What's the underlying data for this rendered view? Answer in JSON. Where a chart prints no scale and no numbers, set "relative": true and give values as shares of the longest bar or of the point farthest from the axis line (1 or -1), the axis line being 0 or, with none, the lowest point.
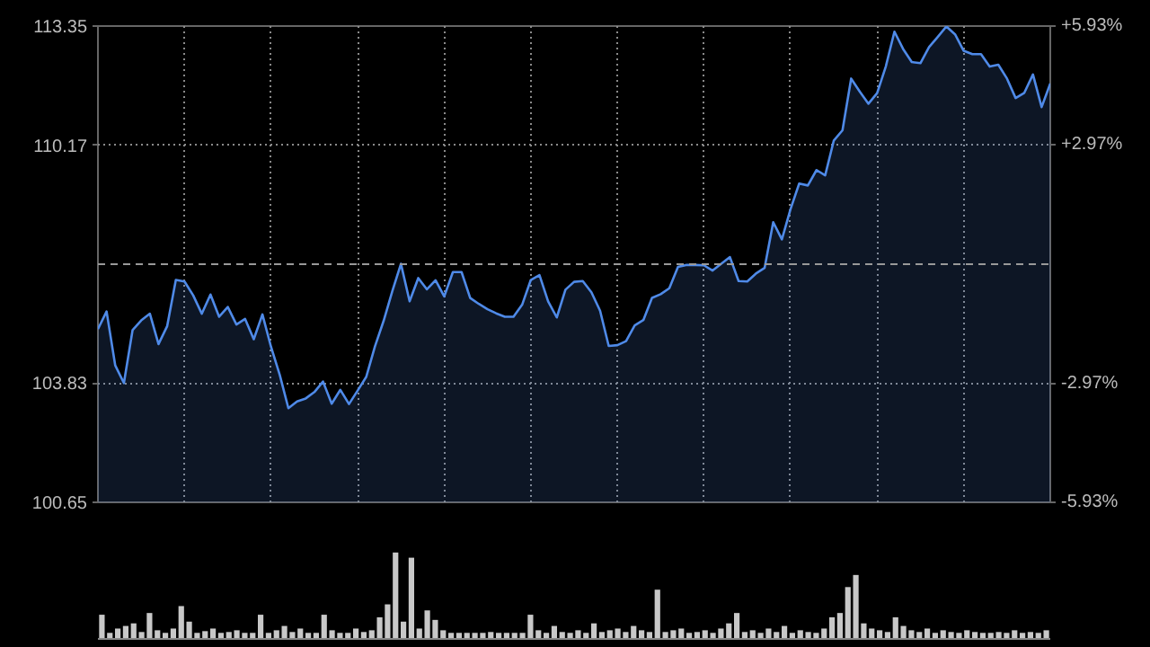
{
  "chart_data": [
    {
      "type": "area",
      "color": "#4f8ae8",
      "grid": true,
      "tick_labels": "y",
      "ylim": [
        100.65,
        113.35
      ],
      "yticks": [
        100.65,
        103.83,
        110.17,
        113.35
      ],
      "y2lim": [
        -5.93,
        5.93
      ],
      "y2ticks": [
        {
          "value": -5.93,
          "label": "-5.93%"
        },
        {
          "value": -2.97,
          "label": "-2.97%"
        },
        {
          "value": 2.97,
          "label": "+2.97%"
        },
        {
          "value": 5.93,
          "label": "+5.93%"
        }
      ],
      "ref_lines": [
        {
          "axis": "y",
          "value": 107.0,
          "line_style": "dashed",
          "color": "#999999"
        }
      ],
      "categories": [
        null,
        null,
        null,
        null,
        null,
        null,
        null,
        null,
        null,
        null,
        null,
        null,
        null,
        null,
        null,
        null,
        null,
        null,
        null,
        null,
        null,
        null,
        null,
        null,
        null,
        null,
        null,
        null,
        null,
        null,
        null,
        null,
        null,
        null,
        null,
        null,
        null,
        null,
        null,
        null,
        null,
        null,
        null,
        null,
        null,
        null,
        null,
        null,
        null,
        null,
        null,
        null,
        null,
        null,
        null,
        null,
        null,
        null,
        null,
        null,
        null,
        null,
        null,
        null,
        null,
        null,
        null,
        null,
        null,
        null,
        null,
        null,
        null,
        null,
        null,
        null,
        null,
        null,
        null,
        null,
        null,
        null,
        null,
        null,
        null,
        null,
        null,
        null,
        null,
        null,
        null,
        null,
        null,
        null,
        null,
        null,
        null,
        null,
        null,
        null,
        null,
        null,
        null,
        null,
        null,
        null,
        null,
        null,
        null,
        null,
        null
      ],
      "values": [
        105.27,
        105.74,
        104.3,
        103.83,
        105.24,
        105.5,
        105.68,
        104.87,
        105.35,
        106.58,
        106.54,
        106.17,
        105.68,
        106.19,
        105.6,
        105.86,
        105.39,
        105.54,
        105.0,
        105.66,
        104.79,
        104.05,
        103.16,
        103.34,
        103.42,
        103.59,
        103.87,
        103.28,
        103.65,
        103.27,
        103.63,
        104.0,
        104.81,
        105.49,
        106.28,
        107.01,
        106.01,
        106.63,
        106.33,
        106.57,
        106.14,
        106.79,
        106.79,
        106.1,
        105.94,
        105.8,
        105.69,
        105.6,
        105.6,
        105.92,
        106.58,
        106.71,
        106.01,
        105.58,
        106.32,
        106.53,
        106.55,
        106.25,
        105.76,
        104.82,
        104.84,
        104.95,
        105.37,
        105.51,
        106.1,
        106.2,
        106.36,
        106.93,
        106.98,
        106.98,
        106.97,
        106.83,
        107.01,
        107.19,
        106.55,
        106.54,
        106.75,
        106.9,
        108.12,
        107.66,
        108.47,
        109.15,
        109.1,
        109.51,
        109.37,
        110.3,
        110.57,
        111.95,
        111.6,
        111.28,
        111.56,
        112.27,
        113.2,
        112.74,
        112.39,
        112.36,
        112.79,
        113.06,
        113.34,
        113.13,
        112.69,
        112.6,
        112.6,
        112.27,
        112.32,
        111.95,
        111.43,
        111.57,
        112.06,
        111.19,
        111.82
      ]
    },
    {
      "type": "bar",
      "relative": true,
      "color": "#c8c8c8",
      "categories": [
        null,
        null,
        null,
        null,
        null,
        null,
        null,
        null,
        null,
        null,
        null,
        null,
        null,
        null,
        null,
        null,
        null,
        null,
        null,
        null,
        null,
        null,
        null,
        null,
        null,
        null,
        null,
        null,
        null,
        null,
        null,
        null,
        null,
        null,
        null,
        null,
        null,
        null,
        null,
        null,
        null,
        null,
        null,
        null,
        null,
        null,
        null,
        null,
        null,
        null,
        null,
        null,
        null,
        null,
        null,
        null,
        null,
        null,
        null,
        null,
        null,
        null,
        null,
        null,
        null,
        null,
        null,
        null,
        null,
        null,
        null,
        null,
        null,
        null,
        null,
        null,
        null,
        null,
        null,
        null,
        null,
        null,
        null,
        null,
        null,
        null,
        null,
        null,
        null,
        null,
        null,
        null,
        null,
        null,
        null,
        null,
        null,
        null,
        null,
        null,
        null,
        null,
        null,
        null,
        null,
        null,
        null,
        null,
        null,
        null,
        null,
        null,
        null,
        null,
        null,
        null,
        null,
        null,
        null,
        null
      ],
      "values": [
        0.28,
        0.07,
        0.12,
        0.15,
        0.18,
        0.08,
        0.3,
        0.1,
        0.07,
        0.12,
        0.38,
        0.2,
        0.07,
        0.09,
        0.12,
        0.07,
        0.08,
        0.1,
        0.07,
        0.07,
        0.28,
        0.07,
        0.1,
        0.15,
        0.08,
        0.12,
        0.07,
        0.07,
        0.28,
        0.1,
        0.07,
        0.07,
        0.12,
        0.08,
        0.1,
        0.25,
        0.4,
        1.0,
        0.2,
        0.94,
        0.12,
        0.33,
        0.22,
        0.1,
        0.07,
        0.07,
        0.07,
        0.07,
        0.07,
        0.08,
        0.07,
        0.07,
        0.07,
        0.07,
        0.28,
        0.1,
        0.07,
        0.15,
        0.08,
        0.07,
        0.1,
        0.07,
        0.18,
        0.08,
        0.1,
        0.12,
        0.08,
        0.15,
        0.1,
        0.08,
        0.57,
        0.08,
        0.1,
        0.12,
        0.07,
        0.08,
        0.1,
        0.07,
        0.12,
        0.18,
        0.3,
        0.08,
        0.1,
        0.07,
        0.12,
        0.08,
        0.15,
        0.07,
        0.1,
        0.08,
        0.07,
        0.12,
        0.25,
        0.3,
        0.6,
        0.74,
        0.18,
        0.12,
        0.1,
        0.08,
        0.25,
        0.15,
        0.1,
        0.08,
        0.12,
        0.07,
        0.1,
        0.08,
        0.07,
        0.1,
        0.08,
        0.07,
        0.07,
        0.08,
        0.07,
        0.1,
        0.07,
        0.08,
        0.07,
        0.1
      ]
    }
  ]
}
